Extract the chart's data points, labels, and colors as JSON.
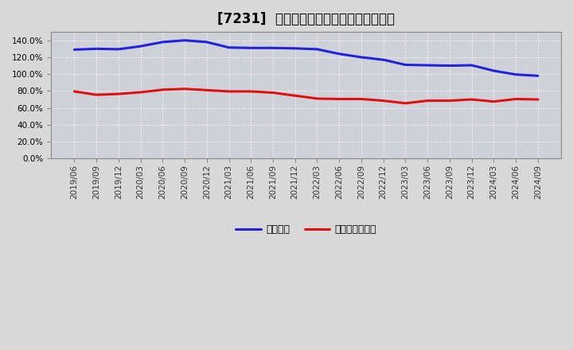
{
  "title": "[7231]  固定比率、固定長期適合率の推移",
  "x_labels": [
    "2019/06",
    "2019/09",
    "2019/12",
    "2020/03",
    "2020/06",
    "2020/09",
    "2020/12",
    "2021/03",
    "2021/06",
    "2021/09",
    "2021/12",
    "2022/03",
    "2022/06",
    "2022/09",
    "2022/12",
    "2023/03",
    "2023/06",
    "2023/09",
    "2023/12",
    "2024/03",
    "2024/06",
    "2024/09"
  ],
  "fixed_ratio": [
    129.0,
    130.0,
    129.5,
    133.0,
    138.0,
    140.0,
    138.0,
    131.5,
    131.0,
    131.0,
    130.5,
    129.5,
    124.0,
    120.0,
    117.0,
    111.0,
    110.5,
    110.0,
    110.5,
    104.0,
    99.5,
    98.0
  ],
  "fixed_long_ratio": [
    79.5,
    75.5,
    76.5,
    78.5,
    81.5,
    82.5,
    81.0,
    79.5,
    79.5,
    78.0,
    74.5,
    71.0,
    70.5,
    70.5,
    68.5,
    65.5,
    68.5,
    68.5,
    70.0,
    67.5,
    70.5,
    70.0
  ],
  "line_color_fixed": "#2222dd",
  "line_color_fixed_long": "#dd1111",
  "figure_bg_color": "#d8d8d8",
  "plot_bg_color": "#d0d0d8",
  "grid_color": "#ffffff",
  "ylim": [
    0,
    150
  ],
  "yticks": [
    0,
    20,
    40,
    60,
    80,
    100,
    120,
    140
  ],
  "legend_fixed": "固定比率",
  "legend_fixed_long": "固定長期適合率",
  "title_fontsize": 12,
  "legend_fontsize": 9,
  "tick_fontsize": 7.5,
  "line_width": 2.2
}
